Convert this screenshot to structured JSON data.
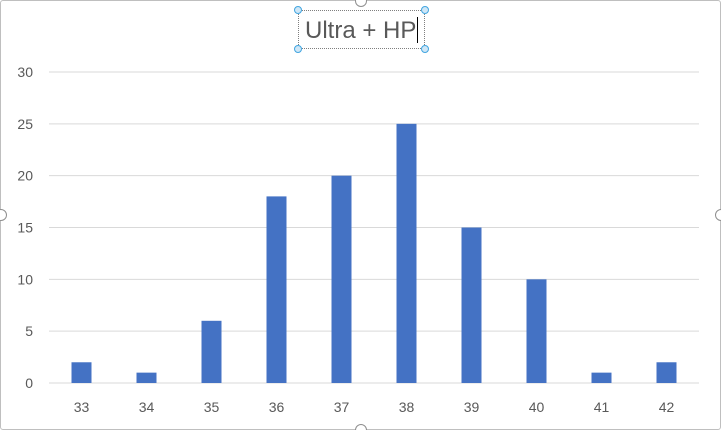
{
  "chart_data": {
    "type": "bar",
    "title": "Ultra + HP",
    "categories": [
      "33",
      "34",
      "35",
      "36",
      "37",
      "38",
      "39",
      "40",
      "41",
      "42"
    ],
    "values": [
      2,
      1,
      6,
      18,
      20,
      25,
      15,
      10,
      1,
      2
    ],
    "ylim": [
      0,
      30
    ],
    "yticks": [
      0,
      5,
      10,
      15,
      20,
      25,
      30
    ],
    "xlabel": "",
    "ylabel": "",
    "grid": true,
    "legend": "none",
    "bar_color": "#4472c4",
    "grid_color": "#d9d9d9",
    "tick_label_color": "#595959"
  },
  "ui": {
    "title_selected": true,
    "chart_area_selected": true
  }
}
